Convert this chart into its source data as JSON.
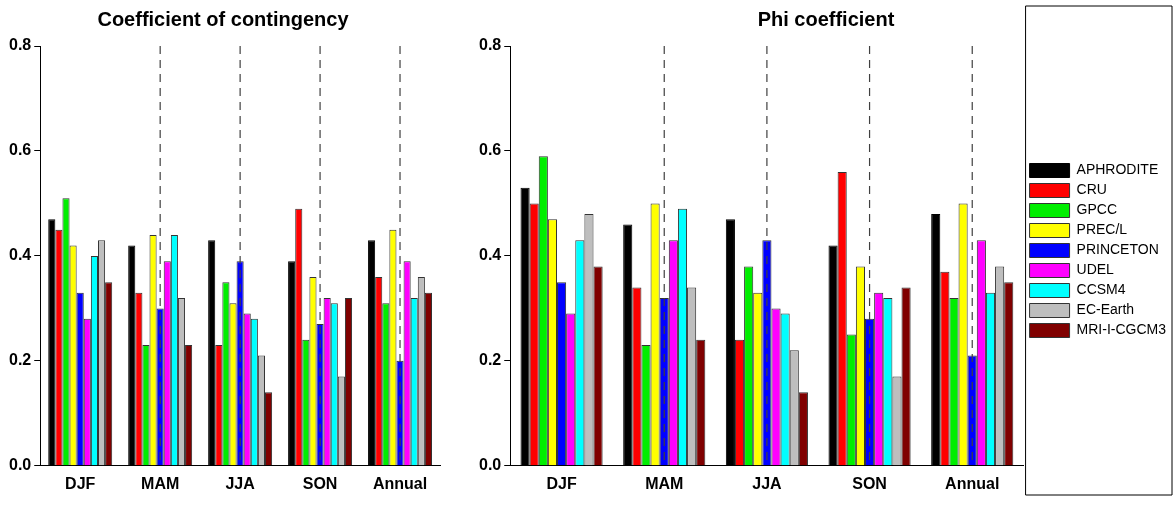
{
  "chart_data": [
    {
      "type": "bar",
      "title": "Coefficient of contingency",
      "categories": [
        "DJF",
        "MAM",
        "JJA",
        "SON",
        "Annual"
      ],
      "ylim": [
        0,
        0.8
      ],
      "yticks": [
        {
          "value": 0,
          "label": "0.0"
        },
        {
          "value": 0.2,
          "label": "0.2"
        },
        {
          "value": 0.4,
          "label": "0.4"
        },
        {
          "value": 0.6,
          "label": "0.6"
        },
        {
          "value": 0.8,
          "label": "0.8"
        }
      ],
      "grid": false,
      "legend": false,
      "ref_lines": [
        {
          "axis": "x",
          "value": "MAM",
          "color": "#404040",
          "line_style": "dashed"
        },
        {
          "axis": "x",
          "value": "JJA",
          "color": "#404040",
          "line_style": "dashed"
        },
        {
          "axis": "x",
          "value": "SON",
          "color": "#404040",
          "line_style": "dashed"
        },
        {
          "axis": "x",
          "value": "Annual",
          "color": "#404040",
          "line_style": "dashed"
        }
      ],
      "series": [
        {
          "color": "#000000",
          "values": [
            0.47,
            0.42,
            0.43,
            0.39,
            0.43
          ]
        },
        {
          "color": "#ff0000",
          "values": [
            0.45,
            0.33,
            0.23,
            0.49,
            0.36
          ]
        },
        {
          "color": "#00ee00",
          "values": [
            0.51,
            0.23,
            0.35,
            0.24,
            0.31
          ]
        },
        {
          "color": "#ffff00",
          "values": [
            0.42,
            0.44,
            0.31,
            0.36,
            0.45
          ]
        },
        {
          "color": "#0000ff",
          "values": [
            0.33,
            0.3,
            0.39,
            0.27,
            0.2
          ]
        },
        {
          "color": "#ff00ff",
          "values": [
            0.28,
            0.39,
            0.29,
            0.32,
            0.39
          ]
        },
        {
          "color": "#00ffff",
          "values": [
            0.4,
            0.44,
            0.28,
            0.31,
            0.32
          ]
        },
        {
          "color": "#bebebe",
          "values": [
            0.43,
            0.32,
            0.21,
            0.17,
            0.36
          ]
        },
        {
          "color": "#800000",
          "values": [
            0.35,
            0.23,
            0.14,
            0.32,
            0.33
          ]
        }
      ]
    },
    {
      "type": "bar",
      "title": "Phi coefficient",
      "categories": [
        "DJF",
        "MAM",
        "JJA",
        "SON",
        "Annual"
      ],
      "ylim": [
        0,
        0.8
      ],
      "yticks": [
        {
          "value": 0,
          "label": "0.0"
        },
        {
          "value": 0.2,
          "label": "0.2"
        },
        {
          "value": 0.4,
          "label": "0.4"
        },
        {
          "value": 0.6,
          "label": "0.6"
        },
        {
          "value": 0.8,
          "label": "0.8"
        }
      ],
      "grid": false,
      "legend": "right",
      "ref_lines": [
        {
          "axis": "x",
          "value": "MAM",
          "color": "#404040",
          "line_style": "dashed"
        },
        {
          "axis": "x",
          "value": "JJA",
          "color": "#404040",
          "line_style": "dashed"
        },
        {
          "axis": "x",
          "value": "SON",
          "color": "#404040",
          "line_style": "dashed"
        },
        {
          "axis": "x",
          "value": "Annual",
          "color": "#404040",
          "line_style": "dashed"
        }
      ],
      "series": [
        {
          "name": "APHRODITE",
          "color": "#000000",
          "values": [
            0.53,
            0.46,
            0.47,
            0.42,
            0.48
          ]
        },
        {
          "name": "CRU",
          "color": "#ff0000",
          "values": [
            0.5,
            0.34,
            0.24,
            0.56,
            0.37
          ]
        },
        {
          "name": "GPCC",
          "color": "#00ee00",
          "values": [
            0.59,
            0.23,
            0.38,
            0.25,
            0.32
          ]
        },
        {
          "name": "PREC/L",
          "color": "#ffff00",
          "values": [
            0.47,
            0.5,
            0.33,
            0.38,
            0.5
          ]
        },
        {
          "name": "PRINCETON",
          "color": "#0000ff",
          "values": [
            0.35,
            0.32,
            0.43,
            0.28,
            0.21
          ]
        },
        {
          "name": "UDEL",
          "color": "#ff00ff",
          "values": [
            0.29,
            0.43,
            0.3,
            0.33,
            0.43
          ]
        },
        {
          "name": "CCSM4",
          "color": "#00ffff",
          "values": [
            0.43,
            0.49,
            0.29,
            0.32,
            0.33
          ]
        },
        {
          "name": "EC-Earth",
          "color": "#bebebe",
          "values": [
            0.48,
            0.34,
            0.22,
            0.17,
            0.38
          ]
        },
        {
          "name": "MRI-I-CGCM3",
          "color": "#800000",
          "values": [
            0.38,
            0.24,
            0.14,
            0.34,
            0.35
          ]
        }
      ]
    }
  ]
}
